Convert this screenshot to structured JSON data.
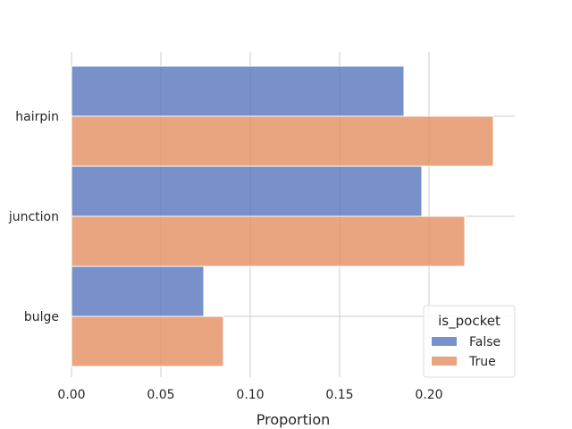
{
  "chart_data": {
    "type": "bar",
    "orientation": "horizontal",
    "categories": [
      "hairpin",
      "junction",
      "bulge"
    ],
    "series": [
      {
        "name": "False",
        "color": "#5875bd",
        "values": [
          0.186,
          0.196,
          0.074
        ]
      },
      {
        "name": "True",
        "color": "#e28e5f",
        "values": [
          0.236,
          0.22,
          0.085
        ]
      }
    ],
    "xlabel": "Proportion",
    "ylabel": "",
    "xlim": [
      0.0,
      0.248
    ],
    "xticks": [
      "0.00",
      "0.05",
      "0.10",
      "0.15",
      "0.20"
    ],
    "xtick_values": [
      0.0,
      0.05,
      0.1,
      0.15,
      0.2
    ],
    "grid": true,
    "legend": {
      "title": "is_pocket",
      "placement": "bottom-right"
    }
  }
}
